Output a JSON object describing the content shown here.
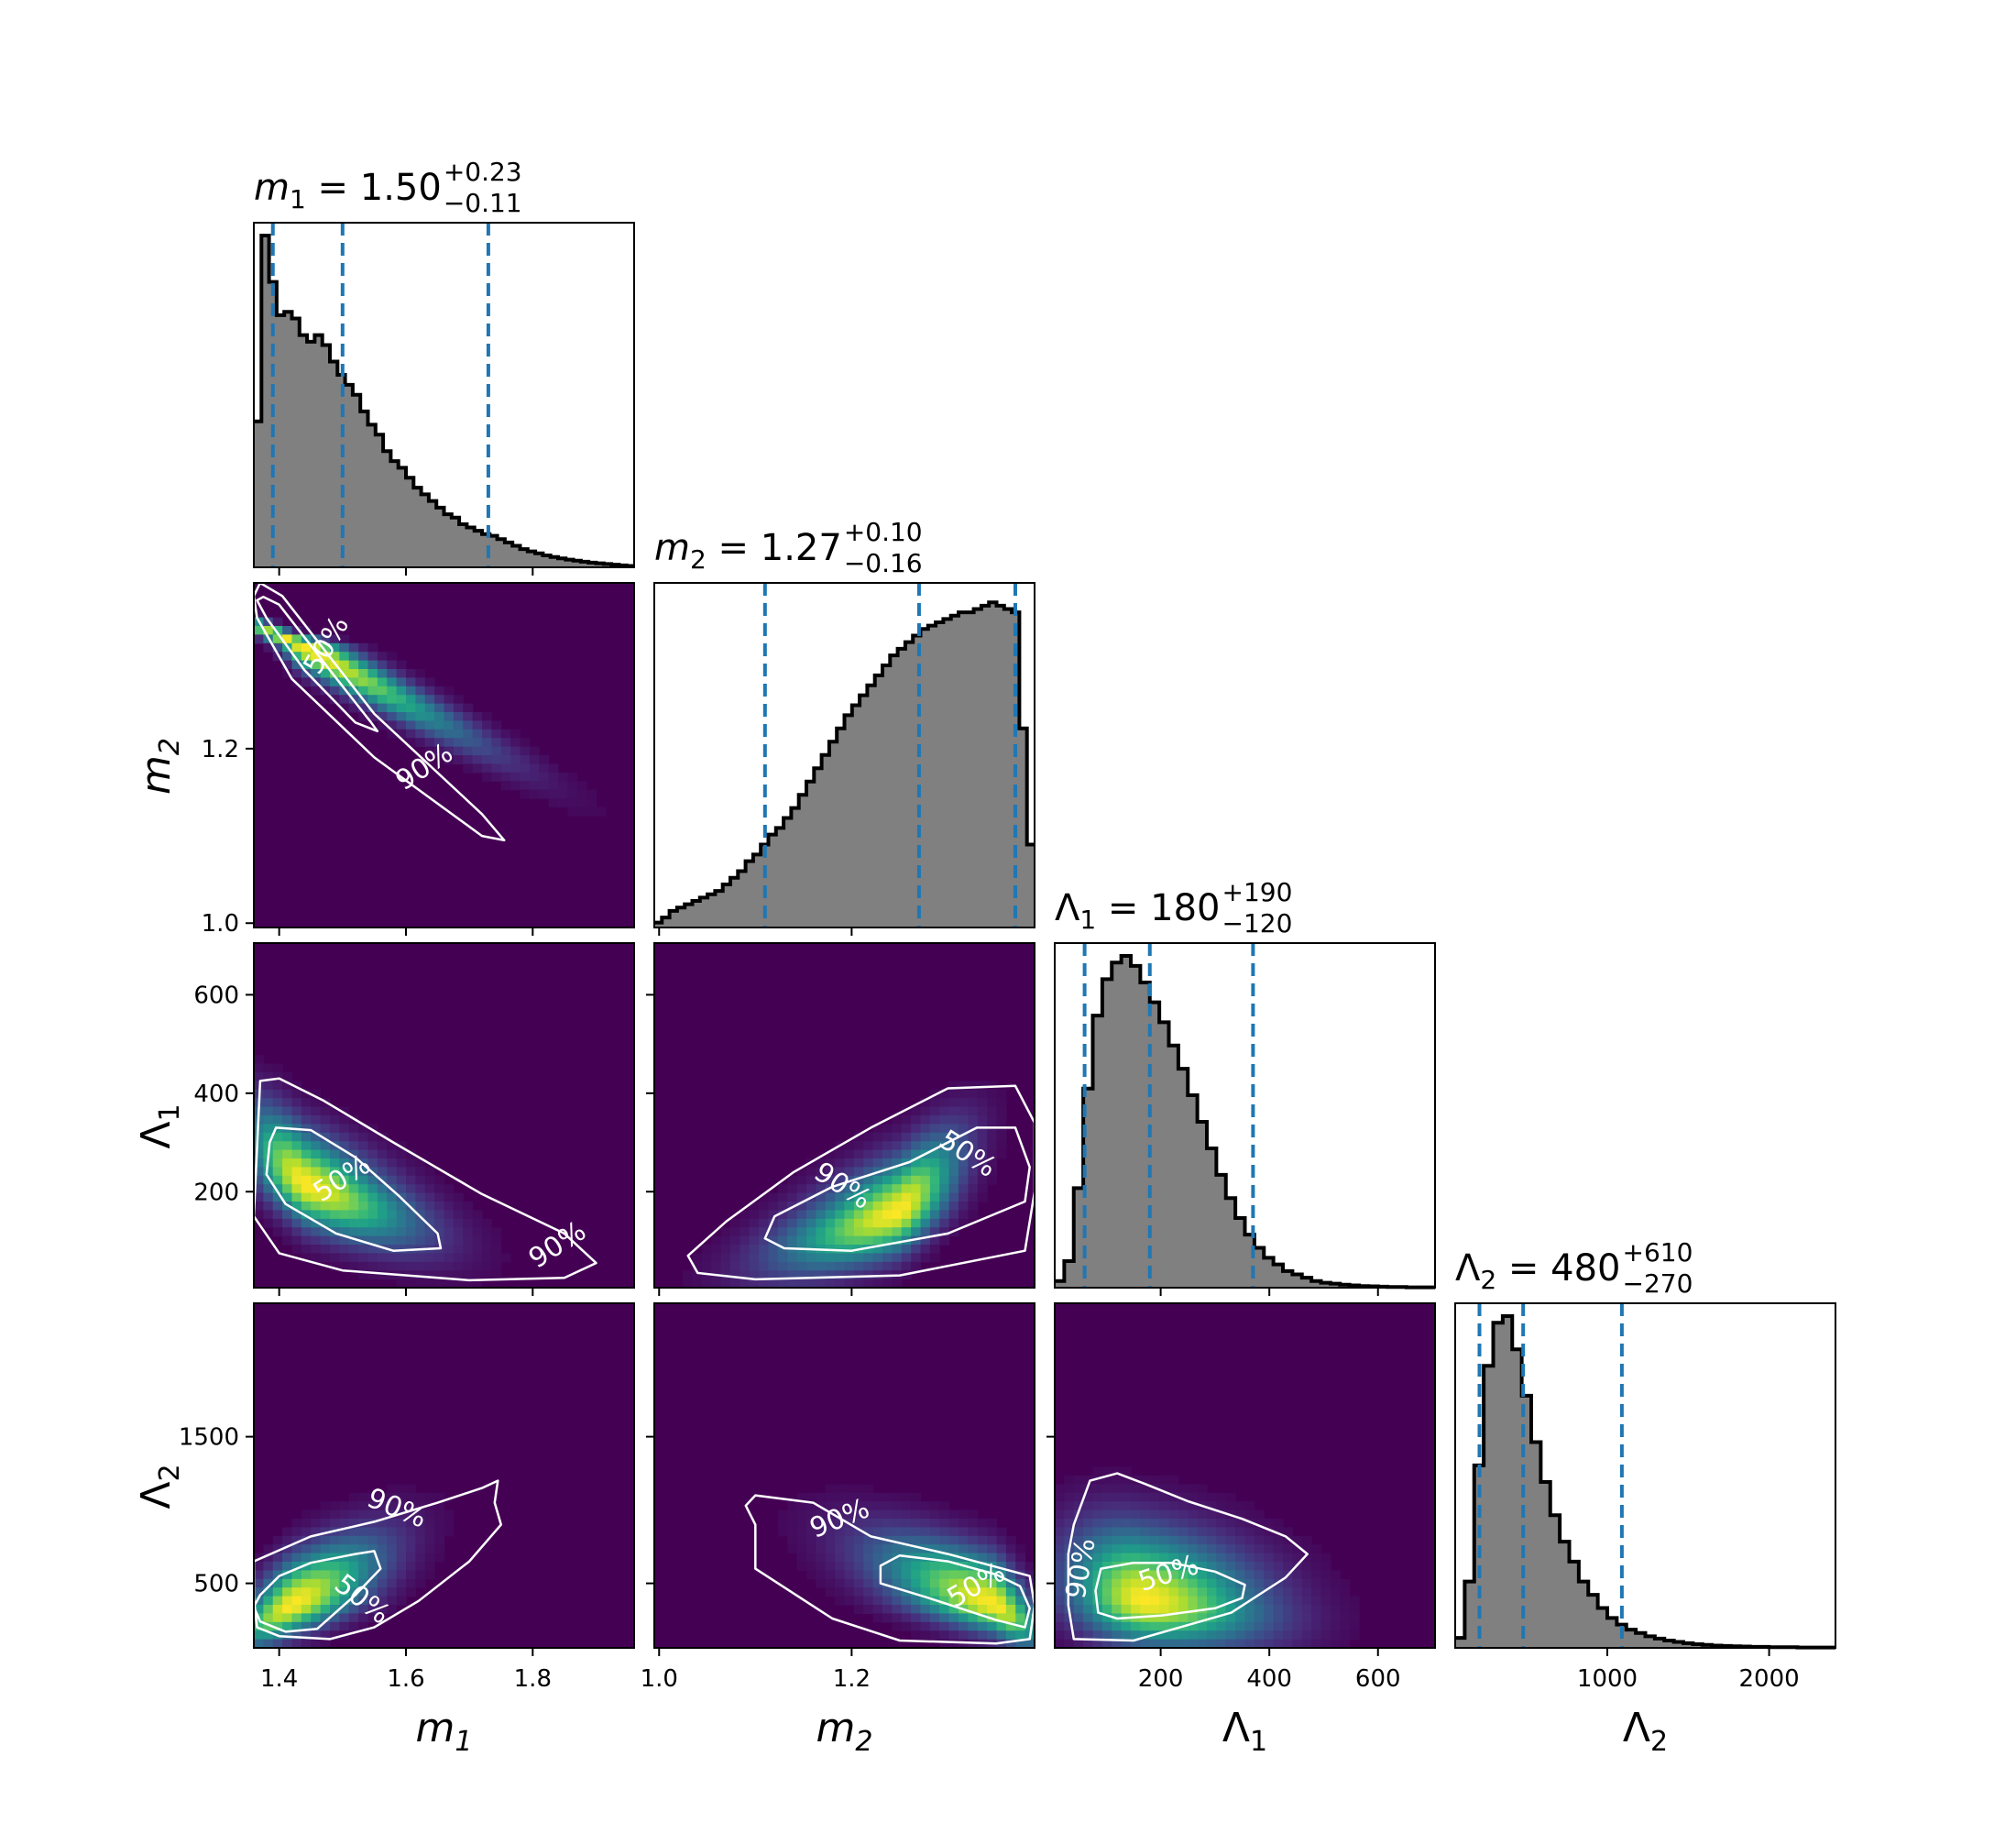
{
  "chart_data": {
    "type": "corner",
    "params": [
      {
        "id": "m1",
        "sym": "m",
        "sub": "1",
        "italic": true,
        "median": "1.50",
        "plus": "+0.23",
        "minus": "−0.11",
        "range": [
          1.36,
          1.96
        ],
        "ticks": [
          1.4,
          1.6,
          1.8
        ],
        "tick_labels": [
          "1.4",
          "1.6",
          "1.8"
        ],
        "quantiles": [
          1.39,
          1.5,
          1.73
        ]
      },
      {
        "id": "m2",
        "sym": "m",
        "sub": "2",
        "italic": true,
        "median": "1.27",
        "plus": "+0.10",
        "minus": "−0.16",
        "range": [
          0.995,
          1.39
        ],
        "ticks": [
          1.0,
          1.2
        ],
        "tick_labels": [
          "1.0",
          "1.2"
        ],
        "quantiles": [
          1.11,
          1.27,
          1.37
        ]
      },
      {
        "id": "L1",
        "sym": "Λ",
        "sub": "1",
        "italic": false,
        "median": "180",
        "plus": "+190",
        "minus": "−120",
        "range": [
          5,
          705
        ],
        "ticks": [
          200,
          400,
          600
        ],
        "tick_labels": [
          "200",
          "400",
          "600"
        ],
        "quantiles": [
          60,
          180,
          370
        ]
      },
      {
        "id": "L2",
        "sym": "Λ",
        "sub": "2",
        "italic": false,
        "median": "480",
        "plus": "+610",
        "minus": "−270",
        "range": [
          60,
          2410
        ],
        "ticks": [
          1000,
          2000
        ],
        "tick_labels": [
          "1000",
          "2000"
        ],
        "quantiles": [
          210,
          480,
          1090
        ]
      }
    ],
    "row_ticks": {
      "m2": {
        "ticks": [
          1.0,
          1.2
        ],
        "tick_labels": [
          "1.0",
          "1.2"
        ]
      },
      "L1": {
        "ticks": [
          200,
          400,
          600
        ],
        "tick_labels": [
          "200",
          "400",
          "600"
        ]
      },
      "L2": {
        "ticks": [
          500,
          1500
        ],
        "tick_labels": [
          "500",
          "1500"
        ]
      }
    },
    "row_ranges": {
      "m2": [
        0.995,
        1.39
      ],
      "L1": [
        5,
        705
      ],
      "L2": [
        60,
        2410
      ]
    },
    "histograms": {
      "m1": [
        0.44,
        1.0,
        0.86,
        0.76,
        0.77,
        0.75,
        0.7,
        0.68,
        0.7,
        0.67,
        0.62,
        0.58,
        0.55,
        0.52,
        0.47,
        0.43,
        0.4,
        0.35,
        0.32,
        0.3,
        0.27,
        0.24,
        0.22,
        0.2,
        0.18,
        0.16,
        0.15,
        0.13,
        0.12,
        0.11,
        0.1,
        0.095,
        0.085,
        0.075,
        0.065,
        0.055,
        0.048,
        0.042,
        0.036,
        0.031,
        0.027,
        0.023,
        0.02,
        0.017,
        0.014,
        0.012,
        0.01,
        0.008,
        0.006,
        0.004
      ],
      "m2": [
        0.015,
        0.03,
        0.05,
        0.06,
        0.07,
        0.08,
        0.09,
        0.1,
        0.11,
        0.13,
        0.15,
        0.17,
        0.2,
        0.22,
        0.25,
        0.28,
        0.3,
        0.33,
        0.36,
        0.4,
        0.44,
        0.48,
        0.52,
        0.56,
        0.6,
        0.64,
        0.67,
        0.7,
        0.73,
        0.76,
        0.79,
        0.82,
        0.84,
        0.86,
        0.88,
        0.9,
        0.91,
        0.92,
        0.93,
        0.94,
        0.95,
        0.95,
        0.96,
        0.97,
        0.98,
        0.97,
        0.96,
        0.95,
        0.6,
        0.25
      ],
      "L1": [
        0.02,
        0.08,
        0.3,
        0.6,
        0.82,
        0.93,
        0.98,
        1.0,
        0.97,
        0.92,
        0.86,
        0.8,
        0.73,
        0.66,
        0.58,
        0.5,
        0.42,
        0.34,
        0.27,
        0.21,
        0.16,
        0.12,
        0.09,
        0.07,
        0.05,
        0.04,
        0.03,
        0.02,
        0.015,
        0.012,
        0.009,
        0.007,
        0.005,
        0.004,
        0.003,
        0.002,
        0.002,
        0.001,
        0.001,
        0.001
      ],
      "L2": [
        0.03,
        0.2,
        0.55,
        0.85,
        0.98,
        1.0,
        0.9,
        0.76,
        0.62,
        0.5,
        0.4,
        0.32,
        0.26,
        0.2,
        0.16,
        0.12,
        0.09,
        0.07,
        0.055,
        0.045,
        0.035,
        0.028,
        0.022,
        0.018,
        0.014,
        0.011,
        0.009,
        0.007,
        0.006,
        0.005,
        0.004,
        0.003,
        0.003,
        0.002,
        0.002,
        0.002,
        0.001,
        0.001,
        0.001,
        0.001
      ]
    },
    "contour_levels": [
      "50%",
      "90%"
    ],
    "densities": [
      {
        "x": "m1",
        "y": "m2",
        "peak": [
          1.43,
          1.32
        ],
        "sx": 0.09,
        "sy": 0.07,
        "rho": -0.97,
        "skew": [
          0.9,
          -0.6
        ],
        "c50": [
          [
            1.375,
            1.374
          ],
          [
            1.4,
            1.365
          ],
          [
            1.48,
            1.29
          ],
          [
            1.545,
            1.23
          ],
          [
            1.555,
            1.22
          ],
          [
            1.52,
            1.23
          ],
          [
            1.44,
            1.29
          ],
          [
            1.38,
            1.35
          ],
          [
            1.365,
            1.37
          ]
        ],
        "c90": [
          [
            1.37,
            1.39
          ],
          [
            1.405,
            1.375
          ],
          [
            1.55,
            1.24
          ],
          [
            1.72,
            1.125
          ],
          [
            1.755,
            1.095
          ],
          [
            1.72,
            1.1
          ],
          [
            1.55,
            1.19
          ],
          [
            1.42,
            1.28
          ],
          [
            1.365,
            1.35
          ],
          [
            1.36,
            1.375
          ]
        ],
        "lab50": [
          1.476,
          1.318,
          -60,
          "50%"
        ],
        "lab90": [
          1.63,
          1.178,
          -33,
          "90%"
        ]
      },
      {
        "x": "m1",
        "y": "L1",
        "peak": [
          1.44,
          215
        ],
        "sx": 0.06,
        "sy": 75,
        "rho": -0.7,
        "skew": [
          0.9,
          0.3
        ],
        "c50": [
          [
            1.395,
            330
          ],
          [
            1.45,
            325
          ],
          [
            1.52,
            270
          ],
          [
            1.59,
            190
          ],
          [
            1.65,
            115
          ],
          [
            1.655,
            85
          ],
          [
            1.58,
            80
          ],
          [
            1.49,
            115
          ],
          [
            1.41,
            175
          ],
          [
            1.38,
            235
          ],
          [
            1.385,
            300
          ]
        ],
        "c90": [
          [
            1.37,
            425
          ],
          [
            1.4,
            430
          ],
          [
            1.47,
            385
          ],
          [
            1.58,
            300
          ],
          [
            1.72,
            195
          ],
          [
            1.85,
            115
          ],
          [
            1.9,
            55
          ],
          [
            1.85,
            25
          ],
          [
            1.7,
            20
          ],
          [
            1.5,
            40
          ],
          [
            1.4,
            75
          ],
          [
            1.36,
            150
          ]
        ],
        "lab50": [
          1.5,
          225,
          -33,
          "50%"
        ],
        "lab90": [
          1.84,
          90,
          -33,
          "90%"
        ]
      },
      {
        "x": "m2",
        "y": "L1",
        "peak": [
          1.25,
          160
        ],
        "sx": 0.08,
        "sy": 75,
        "rho": 0.7,
        "skew": [
          -0.5,
          0.3
        ],
        "c50": [
          [
            1.13,
            85
          ],
          [
            1.2,
            80
          ],
          [
            1.3,
            115
          ],
          [
            1.38,
            180
          ],
          [
            1.385,
            250
          ],
          [
            1.37,
            330
          ],
          [
            1.33,
            330
          ],
          [
            1.26,
            260
          ],
          [
            1.18,
            210
          ],
          [
            1.12,
            150
          ],
          [
            1.11,
            105
          ]
        ],
        "c90": [
          [
            1.04,
            35
          ],
          [
            1.1,
            22
          ],
          [
            1.25,
            30
          ],
          [
            1.38,
            80
          ],
          [
            1.39,
            200
          ],
          [
            1.39,
            340
          ],
          [
            1.37,
            415
          ],
          [
            1.3,
            410
          ],
          [
            1.22,
            330
          ],
          [
            1.14,
            240
          ],
          [
            1.07,
            140
          ],
          [
            1.03,
            70
          ]
        ],
        "lab90": [
          1.19,
          210,
          33,
          "90%"
        ],
        "lab50": [
          1.32,
          275,
          33,
          "50%"
        ]
      },
      {
        "x": "m1",
        "y": "L2",
        "peak": [
          1.42,
          350
        ],
        "sx": 0.06,
        "sy": 180,
        "rho": 0.7,
        "skew": [
          0.5,
          0.6
        ],
        "c50": [
          [
            1.37,
            420
          ],
          [
            1.4,
            550
          ],
          [
            1.45,
            640
          ],
          [
            1.52,
            700
          ],
          [
            1.55,
            720
          ],
          [
            1.56,
            600
          ],
          [
            1.52,
            420
          ],
          [
            1.46,
            190
          ],
          [
            1.41,
            170
          ],
          [
            1.37,
            240
          ],
          [
            1.36,
            340
          ]
        ],
        "c90": [
          [
            1.36,
            650
          ],
          [
            1.45,
            820
          ],
          [
            1.55,
            920
          ],
          [
            1.65,
            1050
          ],
          [
            1.72,
            1150
          ],
          [
            1.745,
            1200
          ],
          [
            1.74,
            1050
          ],
          [
            1.75,
            900
          ],
          [
            1.7,
            650
          ],
          [
            1.62,
            380
          ],
          [
            1.55,
            200
          ],
          [
            1.48,
            120
          ],
          [
            1.4,
            140
          ],
          [
            1.365,
            200
          ],
          [
            1.36,
            400
          ]
        ],
        "lab90": [
          1.585,
          1005,
          22,
          "90%"
        ],
        "lab50": [
          1.53,
          385,
          38,
          "50%"
        ]
      },
      {
        "x": "m2",
        "y": "L2",
        "peak": [
          1.35,
          350
        ],
        "sx": 0.08,
        "sy": 180,
        "rho": -0.7,
        "skew": [
          -0.6,
          0.6
        ],
        "c50": [
          [
            1.23,
            620
          ],
          [
            1.23,
            500
          ],
          [
            1.28,
            400
          ],
          [
            1.35,
            250
          ],
          [
            1.38,
            200
          ],
          [
            1.385,
            330
          ],
          [
            1.375,
            480
          ],
          [
            1.35,
            560
          ],
          [
            1.3,
            650
          ],
          [
            1.25,
            690
          ]
        ],
        "c90": [
          [
            1.1,
            1100
          ],
          [
            1.16,
            1050
          ],
          [
            1.22,
            820
          ],
          [
            1.3,
            700
          ],
          [
            1.385,
            550
          ],
          [
            1.39,
            350
          ],
          [
            1.385,
            120
          ],
          [
            1.35,
            90
          ],
          [
            1.25,
            110
          ],
          [
            1.18,
            260
          ],
          [
            1.1,
            600
          ],
          [
            1.1,
            900
          ],
          [
            1.09,
            1030
          ]
        ],
        "lab90": [
          1.188,
          935,
          -22,
          "90%"
        ],
        "lab50": [
          1.33,
          480,
          -30,
          "50%"
        ]
      },
      {
        "x": "L1",
        "y": "L2",
        "peak": [
          170,
          380
        ],
        "sx": 90,
        "sy": 200,
        "rho": -0.25,
        "skew": [
          0.6,
          0.6
        ],
        "c50": [
          [
            90,
            600
          ],
          [
            150,
            640
          ],
          [
            220,
            640
          ],
          [
            300,
            580
          ],
          [
            355,
            490
          ],
          [
            350,
            400
          ],
          [
            300,
            330
          ],
          [
            200,
            280
          ],
          [
            120,
            260
          ],
          [
            85,
            300
          ],
          [
            80,
            450
          ]
        ],
        "c90": [
          [
            40,
            900
          ],
          [
            70,
            1200
          ],
          [
            120,
            1250
          ],
          [
            170,
            1180
          ],
          [
            250,
            1060
          ],
          [
            350,
            940
          ],
          [
            430,
            820
          ],
          [
            470,
            700
          ],
          [
            430,
            540
          ],
          [
            330,
            300
          ],
          [
            150,
            110
          ],
          [
            40,
            120
          ],
          [
            30,
            350
          ],
          [
            30,
            700
          ]
        ],
        "lab90": [
          55,
          600,
          -80,
          "90%"
        ],
        "lab50": [
          215,
          560,
          -18,
          "50%"
        ]
      }
    ]
  }
}
